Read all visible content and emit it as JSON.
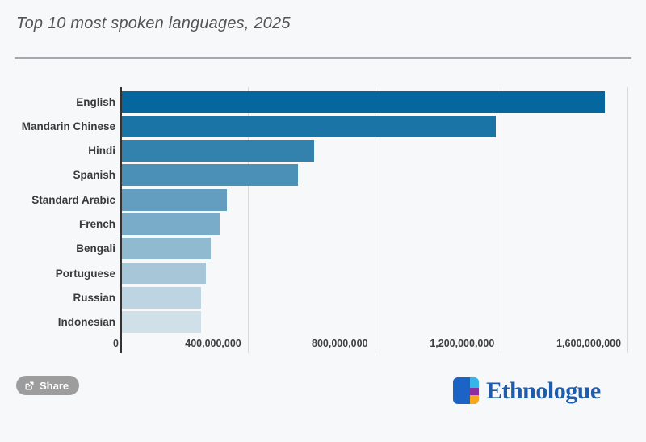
{
  "header": {
    "title": "Top 10 most spoken languages, 2025"
  },
  "chart_data": {
    "type": "bar",
    "orientation": "horizontal",
    "title": "Top 10 most spoken languages, 2025",
    "categories": [
      "English",
      "Mandarin Chinese",
      "Hindi",
      "Spanish",
      "Standard Arabic",
      "French",
      "Bengali",
      "Portuguese",
      "Russian",
      "Indonesian"
    ],
    "values": [
      1528000000,
      1184000000,
      609000000,
      558000000,
      335000000,
      312000000,
      284000000,
      267000000,
      253000000,
      252000000
    ],
    "bar_colors": [
      "#06679e",
      "#1a74a6",
      "#3382ae",
      "#4b90b6",
      "#639ec0",
      "#79acc8",
      "#90bad0",
      "#a7c7d9",
      "#bdd4e2",
      "#d0e0e9"
    ],
    "x_ticks": [
      {
        "value": 0,
        "label": "0"
      },
      {
        "value": 400000000,
        "label": "400,000,000"
      },
      {
        "value": 800000000,
        "label": "800,000,000"
      },
      {
        "value": 1200000000,
        "label": "1,200,000,000"
      },
      {
        "value": 1600000000,
        "label": "1,600,000,000"
      }
    ],
    "xlim": [
      0,
      1633000000
    ],
    "xlabel": "",
    "ylabel": "",
    "grid": true,
    "gridline_color": "#d9dadb",
    "axis_line_color": "#333333",
    "legend": "none"
  },
  "footer": {
    "share_label": "Share",
    "share_button_color": "#9d9d9d",
    "logo_text": "Ethnologue",
    "logo_colors": {
      "blue": "#1b63c4",
      "cyan": "#35b6e8",
      "purple": "#8b2fa0",
      "amber": "#f7a81b",
      "text": "#1f5cab"
    }
  }
}
